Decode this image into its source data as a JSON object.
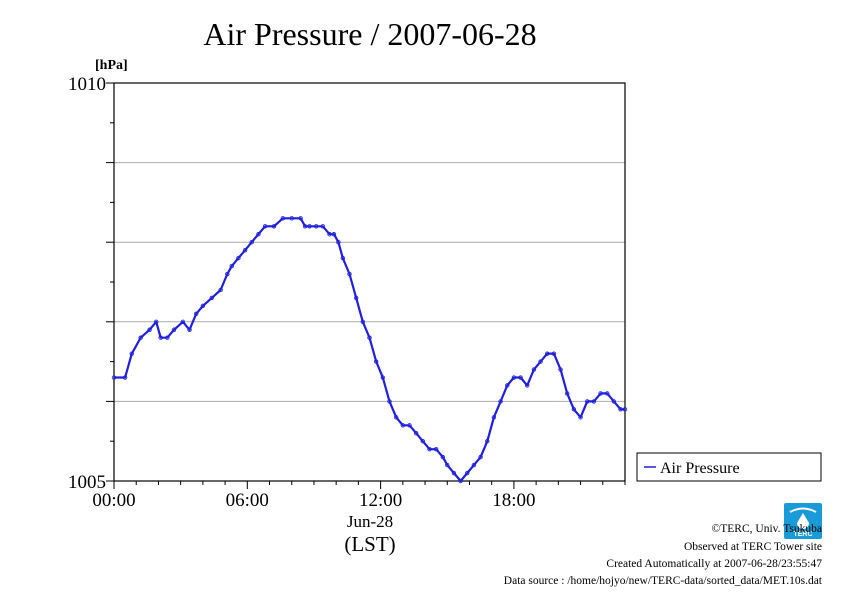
{
  "chart_data": {
    "type": "line",
    "title": "Air Pressure / 2007-06-28",
    "unit_label": "[hPa]",
    "ylim": [
      1005,
      1010
    ],
    "y_tick_labels": [
      "1005",
      "1010"
    ],
    "y_gridlines": [
      1006,
      1007,
      1008,
      1009
    ],
    "xlim": [
      0,
      23
    ],
    "x_ticks": [
      0,
      6,
      12,
      18
    ],
    "x_tick_labels": [
      "00:00",
      "06:00",
      "12:00",
      "18:00"
    ],
    "date_label": "Jun-28",
    "timezone_label": "(LST)",
    "legend": {
      "label": "Air Pressure",
      "position": "right"
    },
    "series": [
      {
        "name": "Air Pressure",
        "color": "#1f1fdc",
        "x": [
          0,
          0.5,
          0.8,
          1.2,
          1.6,
          1.9,
          2.1,
          2.4,
          2.7,
          3.1,
          3.4,
          3.7,
          4.0,
          4.4,
          4.8,
          5.1,
          5.3,
          5.6,
          5.9,
          6.2,
          6.5,
          6.8,
          7.2,
          7.6,
          8.0,
          8.4,
          8.6,
          8.8,
          9.1,
          9.4,
          9.7,
          9.9,
          10.1,
          10.3,
          10.6,
          10.9,
          11.2,
          11.5,
          11.8,
          12.1,
          12.4,
          12.7,
          13.0,
          13.3,
          13.6,
          13.9,
          14.2,
          14.5,
          14.8,
          15.0,
          15.3,
          15.6,
          15.9,
          16.2,
          16.5,
          16.8,
          17.1,
          17.4,
          17.7,
          18.0,
          18.3,
          18.6,
          18.9,
          19.2,
          19.5,
          19.8,
          20.1,
          20.4,
          20.7,
          21.0,
          21.3,
          21.6,
          21.9,
          22.2,
          22.5,
          22.8,
          23.0
        ],
        "y": [
          1006.3,
          1006.3,
          1006.6,
          1006.8,
          1006.9,
          1007.0,
          1006.8,
          1006.8,
          1006.9,
          1007.0,
          1006.9,
          1007.1,
          1007.2,
          1007.3,
          1007.4,
          1007.6,
          1007.7,
          1007.8,
          1007.9,
          1008.0,
          1008.1,
          1008.2,
          1008.2,
          1008.3,
          1008.3,
          1008.3,
          1008.2,
          1008.2,
          1008.2,
          1008.2,
          1008.1,
          1008.1,
          1008.0,
          1007.8,
          1007.6,
          1007.3,
          1007.0,
          1006.8,
          1006.5,
          1006.3,
          1006.0,
          1005.8,
          1005.7,
          1005.7,
          1005.6,
          1005.5,
          1005.4,
          1005.4,
          1005.3,
          1005.2,
          1005.1,
          1005.0,
          1005.1,
          1005.2,
          1005.3,
          1005.5,
          1005.8,
          1006.0,
          1006.2,
          1006.3,
          1006.3,
          1006.2,
          1006.4,
          1006.5,
          1006.6,
          1006.6,
          1006.4,
          1006.1,
          1005.9,
          1005.8,
          1006.0,
          1006.0,
          1006.1,
          1006.1,
          1006.0,
          1005.9,
          1005.9
        ]
      }
    ]
  },
  "footer": {
    "copyright": "©TERC, Univ. Tsukuba",
    "observed": "Observed at TERC Tower site",
    "created": "Created Automatically at 2007-06-28/23:55:47",
    "source": "Data source : /home/hojyo/new/TERC-data/sorted_data/MET.10s.dat"
  },
  "logo": {
    "text": "TERC",
    "color": "#1a9ad6"
  }
}
